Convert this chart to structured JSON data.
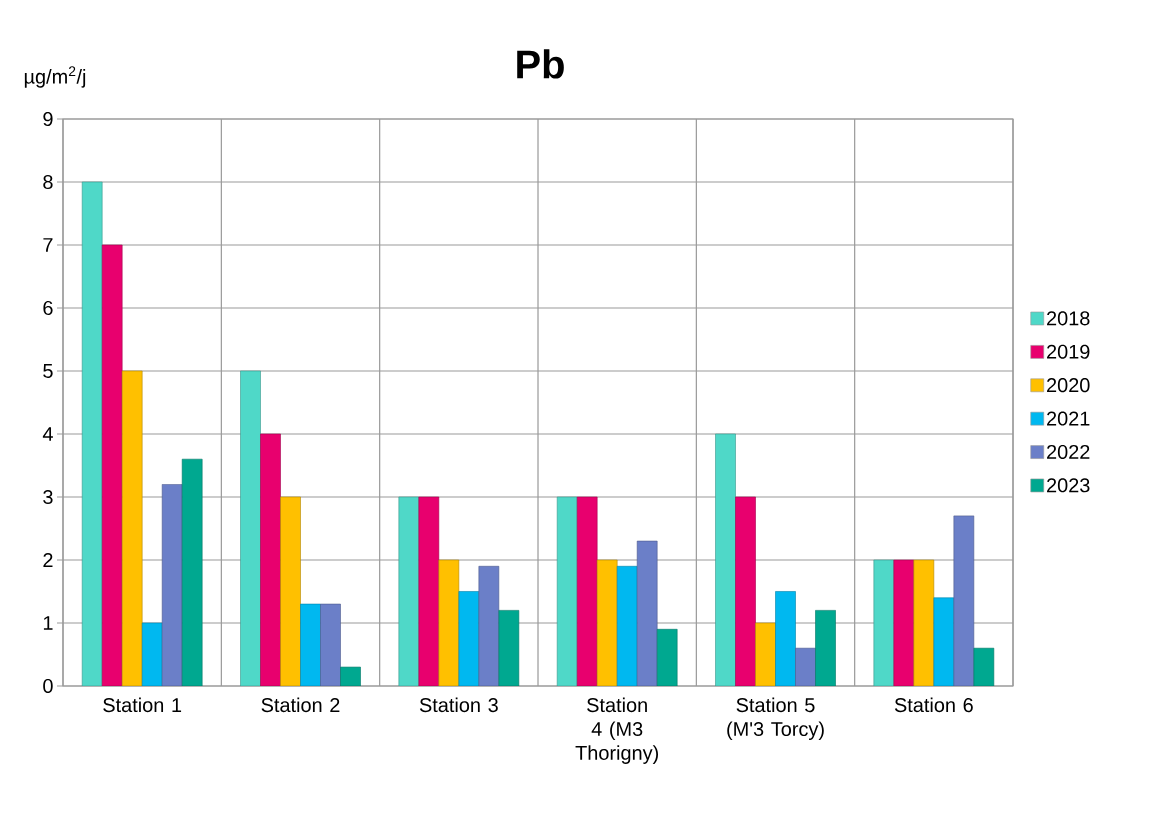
{
  "chart_data": {
    "type": "bar",
    "title": "Pb",
    "ylabel": "µg/m$^{2}$/j",
    "categories": [
      "Station 1",
      "Station 2",
      "Station 3",
      "Station 4 (M3 Thorigny)",
      "Station 5 (M'3 Torcy)",
      "Station 6"
    ],
    "series": [
      {
        "name": "2018",
        "color": "#4fd8c8",
        "values": [
          8,
          5,
          3,
          3,
          4,
          2
        ]
      },
      {
        "name": "2019",
        "color": "#e8006e",
        "values": [
          7,
          4,
          3,
          3,
          3,
          2
        ]
      },
      {
        "name": "2020",
        "color": "#ffc000",
        "values": [
          5,
          3,
          2,
          2,
          1,
          2
        ]
      },
      {
        "name": "2021",
        "color": "#00b8f0",
        "values": [
          1,
          1.3,
          1.5,
          1.9,
          1.5,
          1.4
        ]
      },
      {
        "name": "2022",
        "color": "#6b7fc8",
        "values": [
          3.2,
          1.3,
          1.9,
          2.3,
          0.6,
          2.7
        ]
      },
      {
        "name": "2023",
        "color": "#00a890",
        "values": [
          3.6,
          0.3,
          1.2,
          0.9,
          1.2,
          0.6
        ]
      }
    ],
    "ylim": [
      0,
      9
    ],
    "yticks": [
      0,
      1,
      2,
      3,
      4,
      5,
      6,
      7,
      8,
      9
    ],
    "grid": true,
    "legend": "right"
  }
}
